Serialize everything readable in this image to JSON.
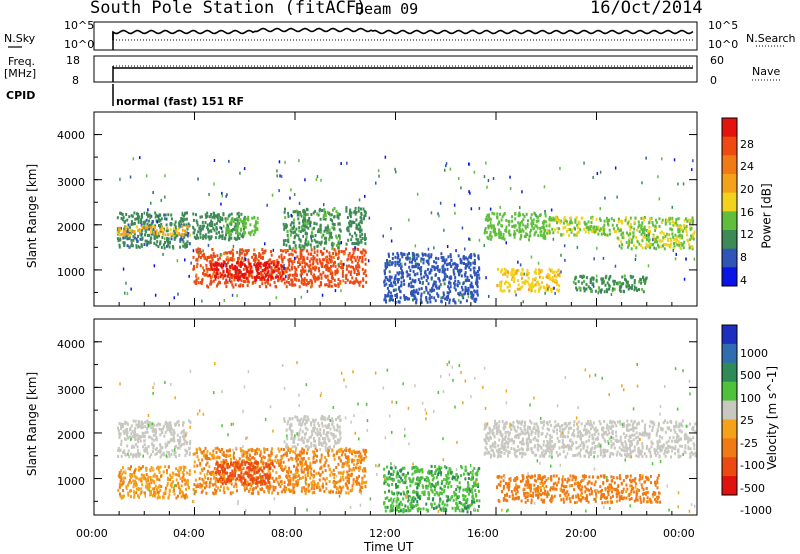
{
  "header": {
    "station": "South Pole Station (fitACF)",
    "beam": "Beam 09",
    "date": "16/Oct/2014"
  },
  "summary_panels": {
    "nsky_label": "N.Sky",
    "nsky_ticks": [
      "10^5",
      "10^0"
    ],
    "nsearch_label": "N.Search",
    "nsearch_ticks": [
      "10^5",
      "10^0"
    ],
    "freq_label_line1": "Freq.",
    "freq_label_line2": "[MHz]",
    "freq_ticks": [
      "18",
      "8"
    ],
    "nave_label": "Nave",
    "nave_ticks": [
      "60",
      "0"
    ],
    "cpid_label": "CPID",
    "cpid_text": "normal (fast) 151 RF"
  },
  "power_panel": {
    "ylabel": "Slant Range [km]",
    "yticks": [
      "4000",
      "3000",
      "2000",
      "1000"
    ],
    "colorbar_label": "Power [dB]",
    "colorbar_ticks": [
      "28",
      "24",
      "20",
      "16",
      "12",
      "8",
      "4"
    ],
    "colors": [
      "#0a14e6",
      "#2f55b8",
      "#3d8a55",
      "#5fbf3c",
      "#f2d21c",
      "#f5a21b",
      "#f07a14",
      "#ee4a12",
      "#e4130e"
    ]
  },
  "velocity_panel": {
    "ylabel": "Slant Range [km]",
    "yticks": [
      "4000",
      "3000",
      "2000",
      "1000"
    ],
    "colorbar_label": "Velocity [m s^-1]",
    "colorbar_ticks": [
      "1000",
      "500",
      "100",
      "25",
      "-25",
      "-100",
      "-500",
      "-1000"
    ],
    "colors": [
      "#1d2fbf",
      "#2f6db0",
      "#2e8a57",
      "#4fc23b",
      "#c8c8c0",
      "#f5a21b",
      "#f07a14",
      "#ec4a12",
      "#e0120e"
    ]
  },
  "xaxis": {
    "ticks": [
      "00:00",
      "04:00",
      "08:00",
      "12:00",
      "16:00",
      "20:00",
      "00:00"
    ],
    "label": "Time UT"
  },
  "chart_data": [
    {
      "type": "heatmap",
      "panel": "power",
      "x_unit": "hours UT",
      "xlim": [
        0,
        24
      ],
      "ylim": [
        200,
        4500
      ],
      "clim": [
        0,
        32
      ],
      "blobs": [
        {
          "x0": 0.9,
          "x1": 3.8,
          "y0": 1500,
          "y1": 2300,
          "v": 8
        },
        {
          "x0": 0.9,
          "x1": 3.8,
          "y0": 1800,
          "y1": 2000,
          "v": 18
        },
        {
          "x0": 3.9,
          "x1": 6.0,
          "y0": 1700,
          "y1": 2300,
          "v": 9
        },
        {
          "x0": 3.9,
          "x1": 10.8,
          "y0": 650,
          "y1": 1500,
          "v": 26
        },
        {
          "x0": 4.5,
          "x1": 7.5,
          "y0": 800,
          "y1": 1200,
          "v": 30
        },
        {
          "x0": 5.2,
          "x1": 6.5,
          "y0": 1800,
          "y1": 2200,
          "v": 12
        },
        {
          "x0": 7.5,
          "x1": 9.8,
          "y0": 1500,
          "y1": 2400,
          "v": 10
        },
        {
          "x0": 10.0,
          "x1": 10.8,
          "y0": 1600,
          "y1": 2500,
          "v": 9
        },
        {
          "x0": 11.5,
          "x1": 15.3,
          "y0": 300,
          "y1": 1400,
          "v": 6
        },
        {
          "x0": 15.5,
          "x1": 18.0,
          "y0": 1700,
          "y1": 2300,
          "v": 12
        },
        {
          "x0": 16.0,
          "x1": 18.5,
          "y0": 550,
          "y1": 1050,
          "v": 17
        },
        {
          "x0": 18.0,
          "x1": 21.0,
          "y0": 1800,
          "y1": 2200,
          "v": 14
        },
        {
          "x0": 20.8,
          "x1": 23.9,
          "y0": 1500,
          "y1": 2200,
          "v": 14
        },
        {
          "x0": 19.0,
          "x1": 22.0,
          "y0": 550,
          "y1": 900,
          "v": 10
        }
      ]
    },
    {
      "type": "heatmap",
      "panel": "velocity",
      "x_unit": "hours UT",
      "xlim": [
        0,
        24
      ],
      "ylim": [
        200,
        4500
      ],
      "clim": [
        -1000,
        1000
      ],
      "blobs": [
        {
          "x0": 0.9,
          "x1": 3.8,
          "y0": 1500,
          "y1": 2300,
          "v": 0
        },
        {
          "x0": 0.9,
          "x1": 3.8,
          "y0": 600,
          "y1": 1300,
          "v": -300
        },
        {
          "x0": 3.9,
          "x1": 10.8,
          "y0": 700,
          "y1": 1700,
          "v": -350
        },
        {
          "x0": 4.8,
          "x1": 7.2,
          "y0": 900,
          "y1": 1400,
          "v": -700
        },
        {
          "x0": 7.5,
          "x1": 9.8,
          "y0": 1700,
          "y1": 2400,
          "v": 0
        },
        {
          "x0": 11.5,
          "x1": 15.3,
          "y0": 300,
          "y1": 1300,
          "v": 300
        },
        {
          "x0": 15.5,
          "x1": 23.9,
          "y0": 1500,
          "y1": 2300,
          "v": 0
        },
        {
          "x0": 16.0,
          "x1": 22.5,
          "y0": 500,
          "y1": 1100,
          "v": -400
        }
      ]
    }
  ]
}
